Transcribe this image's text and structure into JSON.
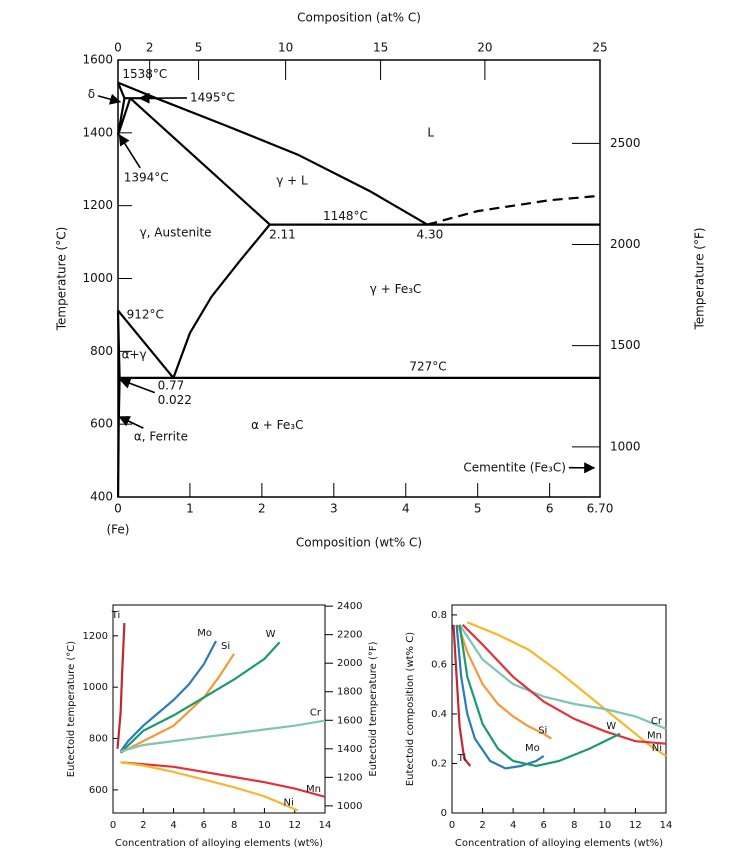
{
  "chart_data": [
    {
      "type": "phase-diagram",
      "x2label": "Composition (at% C)",
      "xlabel": "Composition (wt% C)",
      "x_note": "(Fe)",
      "ylabel": "Temperature (°C)",
      "y2label": "Temperature (°F)",
      "xlim": [
        0,
        6.7
      ],
      "xticks": [
        0,
        1,
        2,
        3,
        4,
        5,
        6,
        {
          "value": 6.7,
          "label": "6.70"
        }
      ],
      "x2ticks": [
        {
          "value": 0,
          "label": "0"
        },
        {
          "value": 0.44,
          "label": "2"
        },
        {
          "value": 1.12,
          "label": "5"
        },
        {
          "value": 2.33,
          "label": "10"
        },
        {
          "value": 3.65,
          "label": "15"
        },
        {
          "value": 5.1,
          "label": "20"
        },
        {
          "value": 6.7,
          "label": "25"
        }
      ],
      "ylim": [
        400,
        1600
      ],
      "yticks": [
        400,
        600,
        800,
        1000,
        1200,
        1400,
        1600
      ],
      "y2lim": [
        752,
        2912
      ],
      "y2ticks": [
        1000,
        1500,
        2000,
        2500
      ],
      "boundaries": [
        {
          "x": [
            0,
            0.53
          ],
          "values": [
            1538,
            1495
          ]
        },
        {
          "x": [
            0.53,
            1.5,
            2.5,
            3.5,
            4.3
          ],
          "values": [
            1495,
            1420,
            1340,
            1240,
            1148
          ]
        },
        {
          "x": [
            4.3,
            5,
            6,
            6.7
          ],
          "values": [
            1148,
            1185,
            1215,
            1227
          ],
          "style": "dashed"
        },
        {
          "x": [
            0.17,
            2.11
          ],
          "values": [
            1495,
            1148
          ]
        },
        {
          "x": [
            0.09,
            0.53
          ],
          "values": [
            1495,
            1495
          ]
        },
        {
          "x": [
            0,
            0.09,
            0
          ],
          "values": [
            1538,
            1495,
            1394
          ]
        },
        {
          "x": [
            0.17,
            0
          ],
          "values": [
            1495,
            1394
          ]
        },
        {
          "x": [
            2.11,
            6.7
          ],
          "values": [
            1148,
            1148
          ]
        },
        {
          "x": [
            2.11,
            1.7,
            1.3,
            1.0,
            0.77
          ],
          "values": [
            1148,
            1050,
            950,
            850,
            727
          ]
        },
        {
          "x": [
            0,
            0.3,
            0.77
          ],
          "values": [
            912,
            840,
            727
          ]
        },
        {
          "x": [
            0,
            0.022
          ],
          "values": [
            912,
            727
          ]
        },
        {
          "x": [
            0.022,
            6.7
          ],
          "values": [
            727,
            727
          ]
        },
        {
          "x": [
            0.022,
            0.01,
            0.002
          ],
          "values": [
            727,
            600,
            400
          ]
        }
      ],
      "annotations": [
        {
          "text": "1538°C",
          "x": 0.06,
          "y": 1560
        },
        {
          "text": "1495°C",
          "x": 1.0,
          "y": 1495,
          "arrow_to": [
            0.3,
            1495
          ]
        },
        {
          "text": "δ",
          "x": -0.42,
          "y": 1505,
          "arrow_to": [
            0.03,
            1485
          ]
        },
        {
          "text": "1394°C",
          "x": 0.08,
          "y": 1276,
          "arrow_to": [
            0.02,
            1394
          ]
        },
        {
          "text": "γ, Austenite",
          "x": 0.3,
          "y": 1125
        },
        {
          "text": "γ + L",
          "x": 2.2,
          "y": 1268
        },
        {
          "text": "L",
          "x": 4.3,
          "y": 1400
        },
        {
          "text": "1148°C",
          "x": 2.85,
          "y": 1170
        },
        {
          "text": "2.11",
          "x": 2.1,
          "y": 1120
        },
        {
          "text": "4.30",
          "x": 4.15,
          "y": 1120
        },
        {
          "text": "γ + Fe₃C",
          "x": 3.5,
          "y": 970
        },
        {
          "text": "912°C",
          "x": 0.12,
          "y": 900
        },
        {
          "text": "α+γ",
          "x": 0.05,
          "y": 790
        },
        {
          "text": "727°C",
          "x": 4.05,
          "y": 757
        },
        {
          "text": "0.77",
          "x": 0.55,
          "y": 705
        },
        {
          "text": "0.022",
          "x": 0.55,
          "y": 665,
          "arrow_to": [
            0.03,
            722
          ]
        },
        {
          "text": "α + Fe₃C",
          "x": 1.85,
          "y": 597
        },
        {
          "text": "α, Ferrite",
          "x": 0.22,
          "y": 565,
          "arrow_to": [
            0.02,
            620
          ]
        },
        {
          "text": "Cementite (Fe₃C)",
          "x": 4.8,
          "y": 480,
          "arrow_to": [
            6.62,
            480
          ]
        }
      ]
    },
    {
      "type": "line",
      "xlabel": "Concentration of alloying elements (wt%)",
      "ylabel": "Eutectoid temperature (°C)",
      "y2label": "Eutectoid temperature (°F)",
      "xlim": [
        0,
        14
      ],
      "xticks": [
        0,
        2,
        4,
        6,
        8,
        10,
        12,
        14
      ],
      "ylim": [
        510,
        1320
      ],
      "yticks": [
        600,
        800,
        1000,
        1200
      ],
      "y2lim": [
        950,
        2408
      ],
      "y2ticks": [
        1000,
        1200,
        1400,
        1600,
        1800,
        2000,
        2200,
        2400
      ],
      "series": [
        {
          "name": "Ti",
          "color": "#c1272d",
          "x": [
            0.3,
            0.5,
            0.6,
            0.75
          ],
          "values": [
            760,
            900,
            1050,
            1250
          ]
        },
        {
          "name": "Mo",
          "color": "#2b7bb9",
          "x": [
            0.5,
            1,
            2,
            3,
            4,
            5,
            6,
            6.8
          ],
          "values": [
            750,
            790,
            850,
            900,
            950,
            1010,
            1090,
            1180
          ]
        },
        {
          "name": "Si",
          "color": "#f39a38",
          "x": [
            0.5,
            2,
            4,
            6,
            7,
            8
          ],
          "values": [
            745,
            790,
            850,
            960,
            1040,
            1130
          ]
        },
        {
          "name": "W",
          "color": "#1b9a6f",
          "x": [
            0.5,
            2,
            4,
            6,
            8,
            10,
            11
          ],
          "values": [
            745,
            830,
            890,
            960,
            1030,
            1110,
            1175
          ]
        },
        {
          "name": "Cr",
          "color": "#80c4b3",
          "x": [
            0.5,
            2,
            4,
            6,
            8,
            10,
            12,
            14
          ],
          "values": [
            750,
            775,
            790,
            805,
            820,
            835,
            850,
            870
          ]
        },
        {
          "name": "Mn",
          "color": "#e2313b",
          "x": [
            0.5,
            2,
            4,
            6,
            8,
            10,
            12,
            14
          ],
          "values": [
            707,
            700,
            690,
            670,
            650,
            630,
            605,
            573
          ]
        },
        {
          "name": "Ni",
          "color": "#f5b82e",
          "x": [
            0.5,
            2,
            4,
            6,
            8,
            10,
            11,
            12.2
          ],
          "values": [
            707,
            695,
            670,
            640,
            610,
            575,
            550,
            520
          ]
        }
      ]
    },
    {
      "type": "line",
      "xlabel": "Concentration of alloying elements (wt%)",
      "ylabel": "Eutectoid composition (wt% C)",
      "xlim": [
        0,
        14
      ],
      "xticks": [
        0,
        2,
        4,
        6,
        8,
        10,
        12,
        14
      ],
      "ylim": [
        0,
        0.84
      ],
      "yticks": [
        0,
        0.2,
        0.4,
        0.6,
        0.8
      ],
      "series": [
        {
          "name": "Ti",
          "color": "#c1272d",
          "x": [
            0.1,
            0.3,
            0.5,
            0.8,
            1.2
          ],
          "values": [
            0.76,
            0.55,
            0.35,
            0.22,
            0.19
          ]
        },
        {
          "name": "Ni",
          "color": "#f5b82e",
          "x": [
            1,
            3,
            5,
            7,
            9,
            11,
            13,
            14
          ],
          "values": [
            0.77,
            0.72,
            0.66,
            0.57,
            0.47,
            0.37,
            0.27,
            0.23
          ]
        },
        {
          "name": "Cr",
          "color": "#80c4b3",
          "x": [
            0.5,
            2,
            4,
            6,
            8,
            10,
            12,
            14
          ],
          "values": [
            0.76,
            0.62,
            0.52,
            0.47,
            0.44,
            0.42,
            0.39,
            0.34
          ]
        },
        {
          "name": "Mn",
          "color": "#e2313b",
          "x": [
            0.7,
            2,
            4,
            6,
            8,
            10,
            12,
            14
          ],
          "values": [
            0.76,
            0.68,
            0.55,
            0.45,
            0.38,
            0.33,
            0.29,
            0.28
          ]
        },
        {
          "name": "Si",
          "color": "#f39a38",
          "x": [
            0.4,
            1,
            2,
            3,
            4,
            5,
            6,
            6.5
          ],
          "values": [
            0.76,
            0.65,
            0.52,
            0.44,
            0.39,
            0.35,
            0.32,
            0.3
          ]
        },
        {
          "name": "Mo",
          "color": "#2b7bb9",
          "x": [
            0.3,
            0.6,
            1,
            1.5,
            2.5,
            3.5,
            4.5,
            5.5,
            6
          ],
          "values": [
            0.76,
            0.55,
            0.4,
            0.3,
            0.21,
            0.18,
            0.19,
            0.21,
            0.23
          ]
        },
        {
          "name": "W",
          "color": "#1b9a6f",
          "x": [
            0.5,
            1,
            2,
            3,
            4,
            5.5,
            7,
            9,
            11
          ],
          "values": [
            0.76,
            0.55,
            0.36,
            0.26,
            0.21,
            0.19,
            0.21,
            0.26,
            0.32
          ]
        }
      ]
    }
  ]
}
